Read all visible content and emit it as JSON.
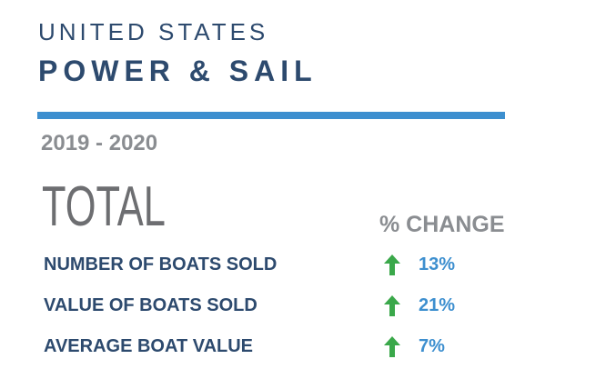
{
  "header": {
    "country": "UNITED STATES",
    "title": "POWER & SAIL",
    "period": "2019 - 2020"
  },
  "table": {
    "heading": "TOTAL",
    "change_heading": "% CHANGE",
    "rows": [
      [
        "NUMBER OF BOATS SOLD",
        "13%"
      ],
      [
        "VALUE OF BOATS SOLD",
        "21%"
      ],
      [
        "AVERAGE BOAT VALUE",
        "7%"
      ]
    ]
  }
}
